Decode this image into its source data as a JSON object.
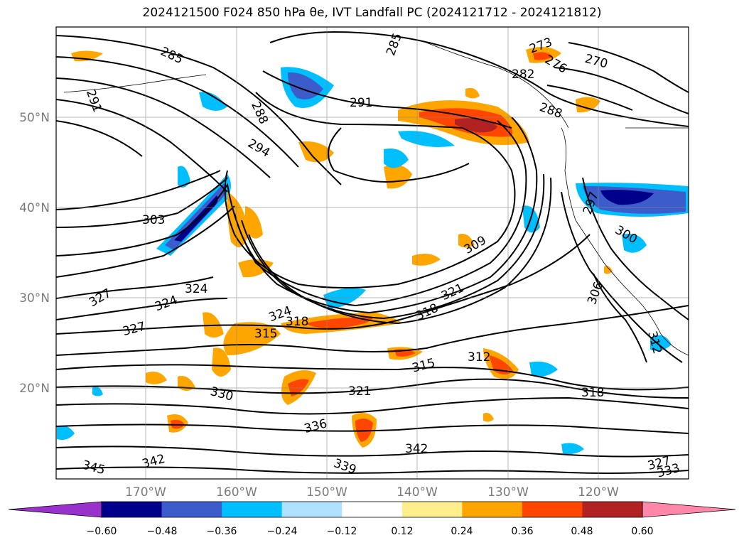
{
  "title_text": "2024121500 F024 850 hPa θe, IVT Landfall PC (2024121712 - 2024121812)",
  "map": {
    "lat_labels": [
      "50°N",
      "40°N",
      "30°N",
      "20°N"
    ],
    "lon_labels": [
      "170°W",
      "160°W",
      "150°W",
      "140°W",
      "130°W",
      "120°W"
    ],
    "contour_labels": [
      "285",
      "285",
      "291",
      "291",
      "288",
      "294",
      "303",
      "327",
      "324",
      "324",
      "327",
      "324",
      "318",
      "315",
      "318",
      "321",
      "309",
      "312",
      "315",
      "321",
      "330",
      "336",
      "342",
      "339",
      "342",
      "345",
      "327",
      "333",
      "306",
      "312",
      "297",
      "300",
      "273",
      "276",
      "282",
      "288",
      "270",
      "318"
    ]
  },
  "colorbar": {
    "colors": [
      "#9932cc",
      "#00008b",
      "#3c5ccc",
      "#00bfff",
      "#b0e2ff",
      "#ffffff",
      "#ffee8c",
      "#ffa500",
      "#ff4500",
      "#b22222",
      "#ff88aa"
    ],
    "tick_labels": [
      "−0.60",
      "−0.48",
      "−0.36",
      "−0.24",
      "−0.12",
      "0.12",
      "0.24",
      "0.36",
      "0.48",
      "0.60"
    ]
  }
}
